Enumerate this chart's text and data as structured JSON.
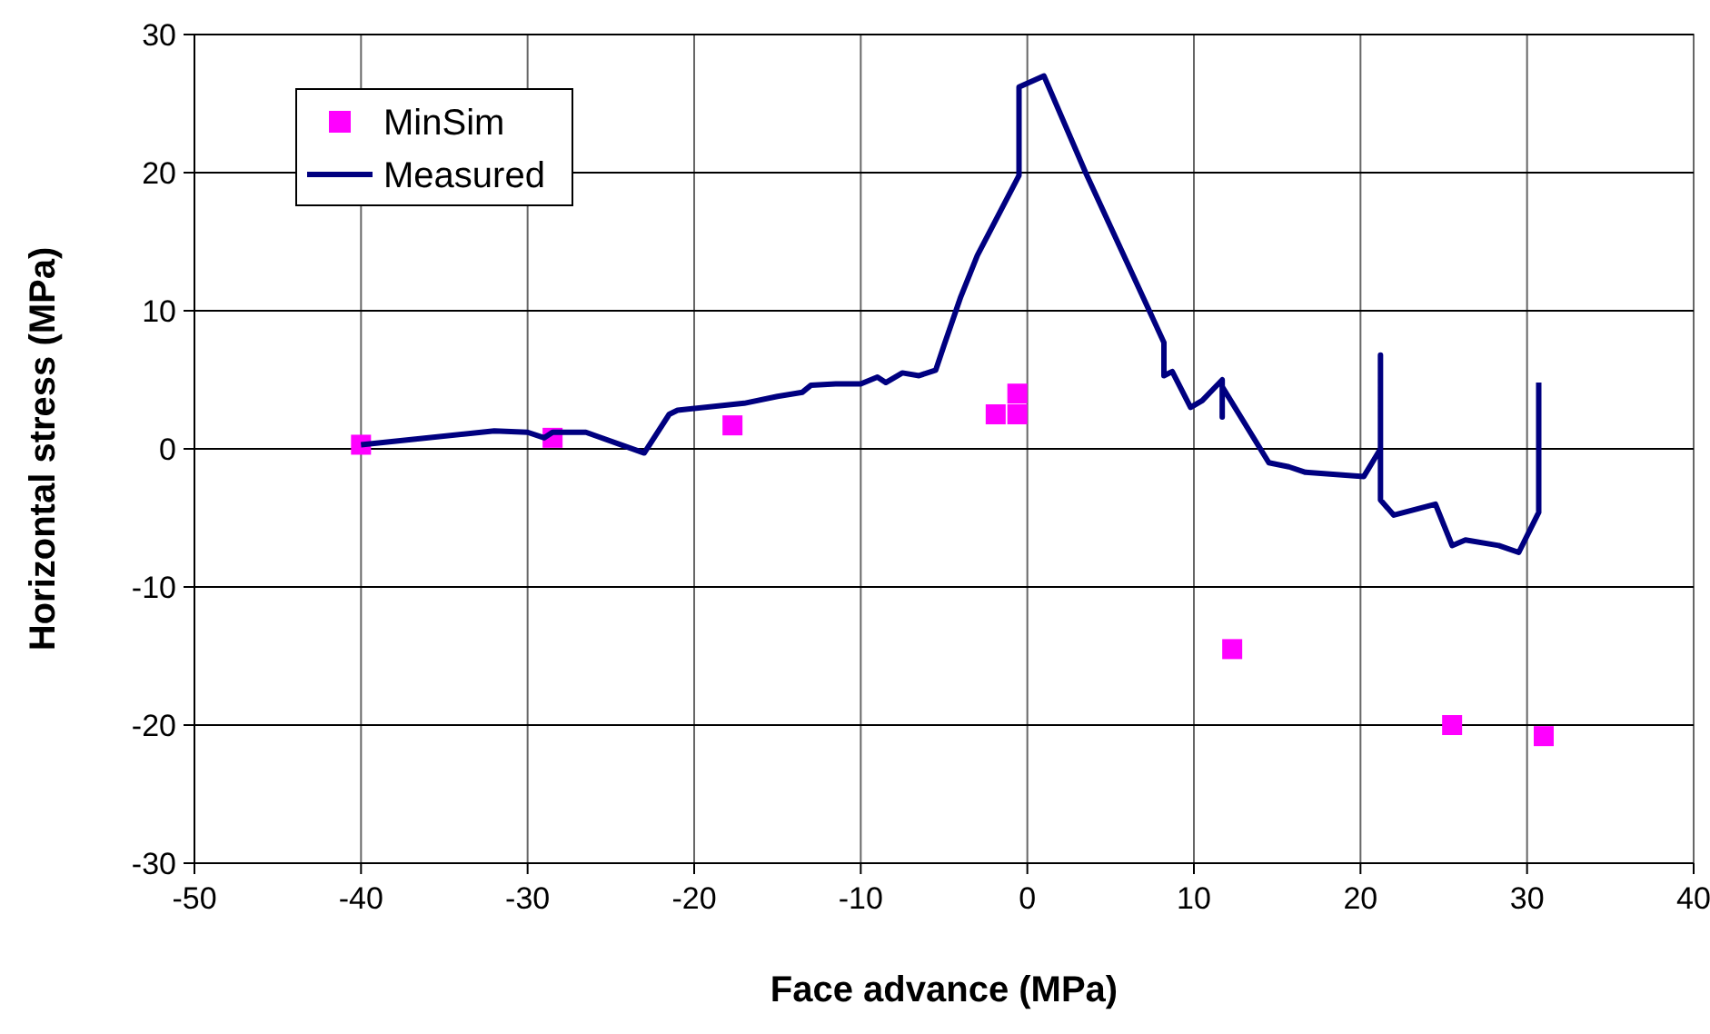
{
  "chart_data": {
    "type": "line",
    "xlabel": "Face advance (MPa)",
    "ylabel": "Horizontal stress (MPa)",
    "xlim": [
      -50,
      40
    ],
    "xticks": [
      -50,
      -40,
      -30,
      -20,
      -10,
      0,
      10,
      20,
      30,
      40
    ],
    "ylim": [
      -30,
      30
    ],
    "yticks": [
      -30,
      -20,
      -10,
      0,
      10,
      20,
      30
    ],
    "grid": true,
    "legend": "top left",
    "series": [
      {
        "name": "MinSim",
        "type": "scatter",
        "marker": "square",
        "color": "#ff00ff",
        "x": [
          -40,
          -28.5,
          -17.7,
          -1.9,
          -0.6,
          -0.6,
          12.3,
          25.5,
          31
        ],
        "values": [
          0.3,
          0.8,
          1.7,
          2.5,
          2.5,
          4,
          -14.5,
          -20,
          -20.8
        ]
      },
      {
        "name": "Measured",
        "marker": "none",
        "color": "#000080",
        "x": [
          -40,
          -32,
          -30,
          -29,
          -28.5,
          -26.5,
          -23,
          -21.5,
          -21,
          -17,
          -15,
          -13.5,
          -13,
          -11.5,
          -10,
          -9,
          -8.5,
          -7.5,
          -6.5,
          -5.5,
          -5,
          -4,
          -3,
          -0.5,
          -0.5,
          1,
          3.5,
          8.2,
          8.2,
          8.7,
          9.8,
          10.5,
          11.7,
          11.7,
          11.7,
          14.5,
          15.7,
          16.7,
          20.2,
          21.2,
          21.2,
          21.2,
          22,
          24.5,
          25.5,
          26.3,
          28.3,
          29.5,
          30.7,
          30.7
        ],
        "values": [
          0.3,
          1.3,
          1.2,
          0.8,
          1.2,
          1.2,
          -0.3,
          2.5,
          2.8,
          3.3,
          3.8,
          4.1,
          4.6,
          4.7,
          4.7,
          5.2,
          4.8,
          5.5,
          5.3,
          5.7,
          7.5,
          11,
          14,
          19.8,
          26.2,
          27,
          20,
          7.7,
          5.3,
          5.6,
          3,
          3.5,
          5,
          2.3,
          4.5,
          -1,
          -1.3,
          -1.7,
          -2,
          0,
          6.8,
          -3.7,
          -4.8,
          -4,
          -7,
          -6.6,
          -7,
          -7.5,
          -4.6,
          4.8
        ]
      }
    ]
  }
}
